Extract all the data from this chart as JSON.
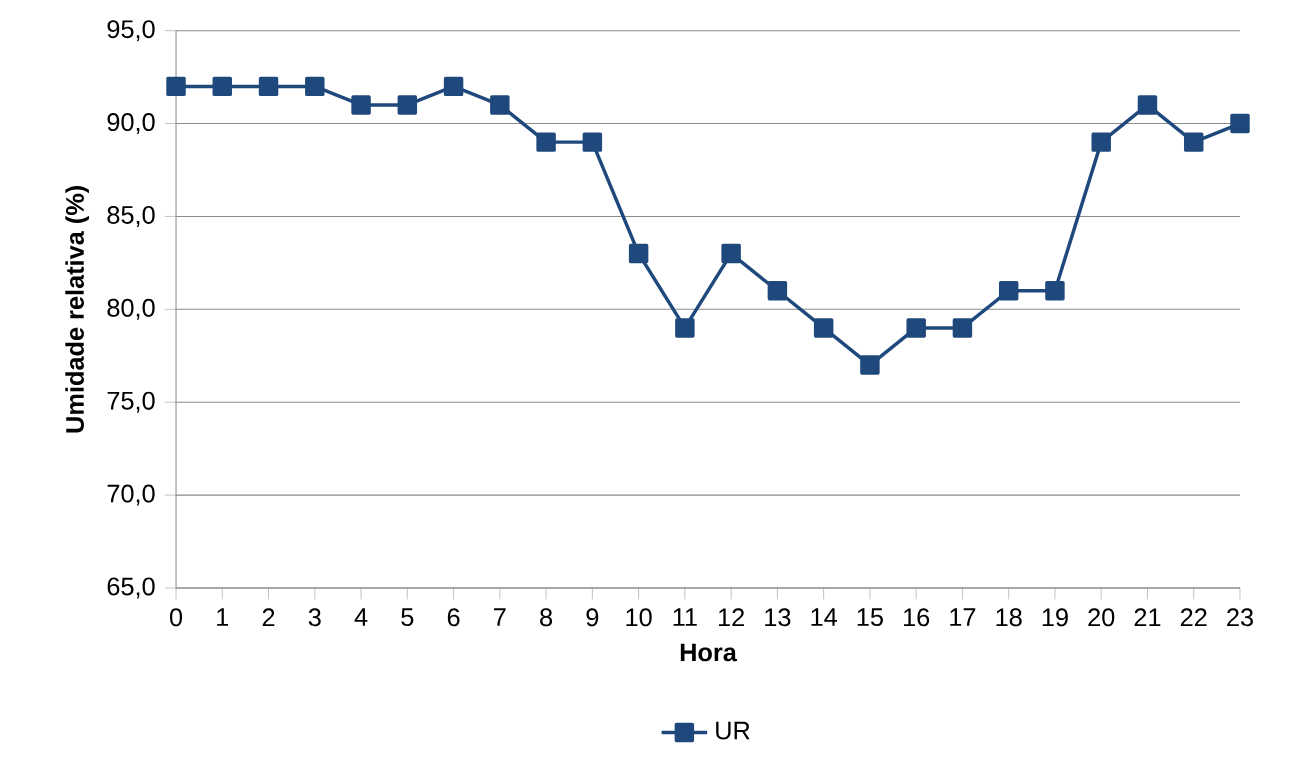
{
  "chart_data": {
    "type": "line",
    "xlabel": "Hora",
    "ylabel": "Umidade relativa (%)",
    "categories": [
      "0",
      "1",
      "2",
      "3",
      "4",
      "5",
      "6",
      "7",
      "8",
      "9",
      "10",
      "11",
      "12",
      "13",
      "14",
      "15",
      "16",
      "17",
      "18",
      "19",
      "20",
      "21",
      "22",
      "23"
    ],
    "series": [
      {
        "name": "UR",
        "color": "#1f497d",
        "values": [
          92,
          92,
          92,
          92,
          91,
          91,
          92,
          91,
          89,
          89,
          83,
          79,
          83,
          81,
          79,
          77,
          79,
          79,
          81,
          81,
          89,
          91,
          89,
          90
        ]
      }
    ],
    "ylim": [
      65,
      95
    ],
    "yticks": [
      {
        "value": 65,
        "label": "65,0"
      },
      {
        "value": 70,
        "label": "70,0"
      },
      {
        "value": 75,
        "label": "75,0"
      },
      {
        "value": 80,
        "label": "80,0"
      },
      {
        "value": 85,
        "label": "85,0"
      },
      {
        "value": 90,
        "label": "90,0"
      },
      {
        "value": 95,
        "label": "95,0"
      }
    ],
    "grid": "y",
    "legend": "bottom",
    "marker": "square",
    "line_style": "solid"
  }
}
